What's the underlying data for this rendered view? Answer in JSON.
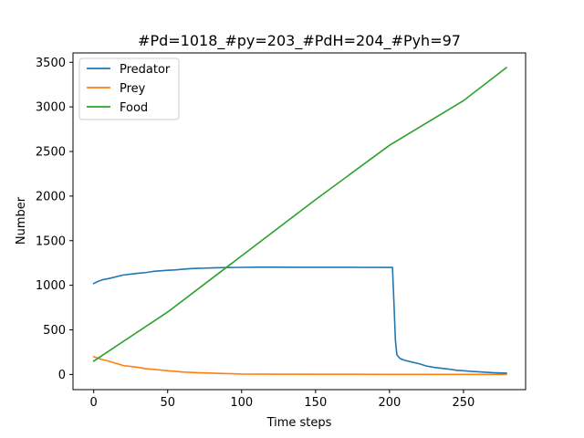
{
  "chart_data": {
    "type": "line",
    "title": "#Pd=1018_#py=203_#PdH=204_#Pyh=97",
    "xlabel": "Time steps",
    "ylabel": "Number",
    "xlim": [
      -14,
      292
    ],
    "ylim": [
      -170,
      3605
    ],
    "xticks": [
      0,
      50,
      100,
      150,
      200,
      250
    ],
    "yticks": [
      0,
      500,
      1000,
      1500,
      2000,
      2500,
      3000,
      3500
    ],
    "grid": false,
    "legend_position": "top-left",
    "series": [
      {
        "name": "Predator",
        "color": "#1f77b4",
        "points": [
          [
            0,
            1020
          ],
          [
            3,
            1045
          ],
          [
            6,
            1062
          ],
          [
            10,
            1075
          ],
          [
            15,
            1095
          ],
          [
            20,
            1115
          ],
          [
            25,
            1125
          ],
          [
            30,
            1135
          ],
          [
            35,
            1142
          ],
          [
            40,
            1155
          ],
          [
            45,
            1162
          ],
          [
            50,
            1168
          ],
          [
            55,
            1172
          ],
          [
            60,
            1180
          ],
          [
            65,
            1186
          ],
          [
            70,
            1190
          ],
          [
            75,
            1192
          ],
          [
            80,
            1195
          ],
          [
            90,
            1199
          ],
          [
            100,
            1201
          ],
          [
            110,
            1203
          ],
          [
            120,
            1203
          ],
          [
            140,
            1202
          ],
          [
            160,
            1202
          ],
          [
            180,
            1201
          ],
          [
            195,
            1200
          ],
          [
            202,
            1200
          ],
          [
            203,
            800
          ],
          [
            204,
            380
          ],
          [
            205,
            220
          ],
          [
            207,
            180
          ],
          [
            210,
            160
          ],
          [
            215,
            140
          ],
          [
            220,
            120
          ],
          [
            225,
            95
          ],
          [
            230,
            80
          ],
          [
            235,
            70
          ],
          [
            240,
            60
          ],
          [
            245,
            48
          ],
          [
            250,
            42
          ],
          [
            255,
            35
          ],
          [
            260,
            30
          ],
          [
            265,
            25
          ],
          [
            270,
            20
          ],
          [
            279,
            15
          ]
        ]
      },
      {
        "name": "Prey",
        "color": "#ff7f0e",
        "points": [
          [
            0,
            200
          ],
          [
            5,
            170
          ],
          [
            10,
            150
          ],
          [
            15,
            125
          ],
          [
            20,
            100
          ],
          [
            25,
            90
          ],
          [
            30,
            80
          ],
          [
            35,
            65
          ],
          [
            40,
            58
          ],
          [
            45,
            50
          ],
          [
            50,
            42
          ],
          [
            55,
            35
          ],
          [
            60,
            28
          ],
          [
            65,
            24
          ],
          [
            70,
            20
          ],
          [
            80,
            15
          ],
          [
            90,
            10
          ],
          [
            100,
            5
          ],
          [
            120,
            3
          ],
          [
            150,
            2
          ],
          [
            200,
            1
          ],
          [
            250,
            1
          ],
          [
            279,
            1
          ]
        ]
      },
      {
        "name": "Food",
        "color": "#2ca02c",
        "points": [
          [
            0,
            150
          ],
          [
            50,
            700
          ],
          [
            100,
            1330
          ],
          [
            150,
            1960
          ],
          [
            200,
            2570
          ],
          [
            250,
            3070
          ],
          [
            279,
            3440
          ]
        ]
      }
    ]
  }
}
